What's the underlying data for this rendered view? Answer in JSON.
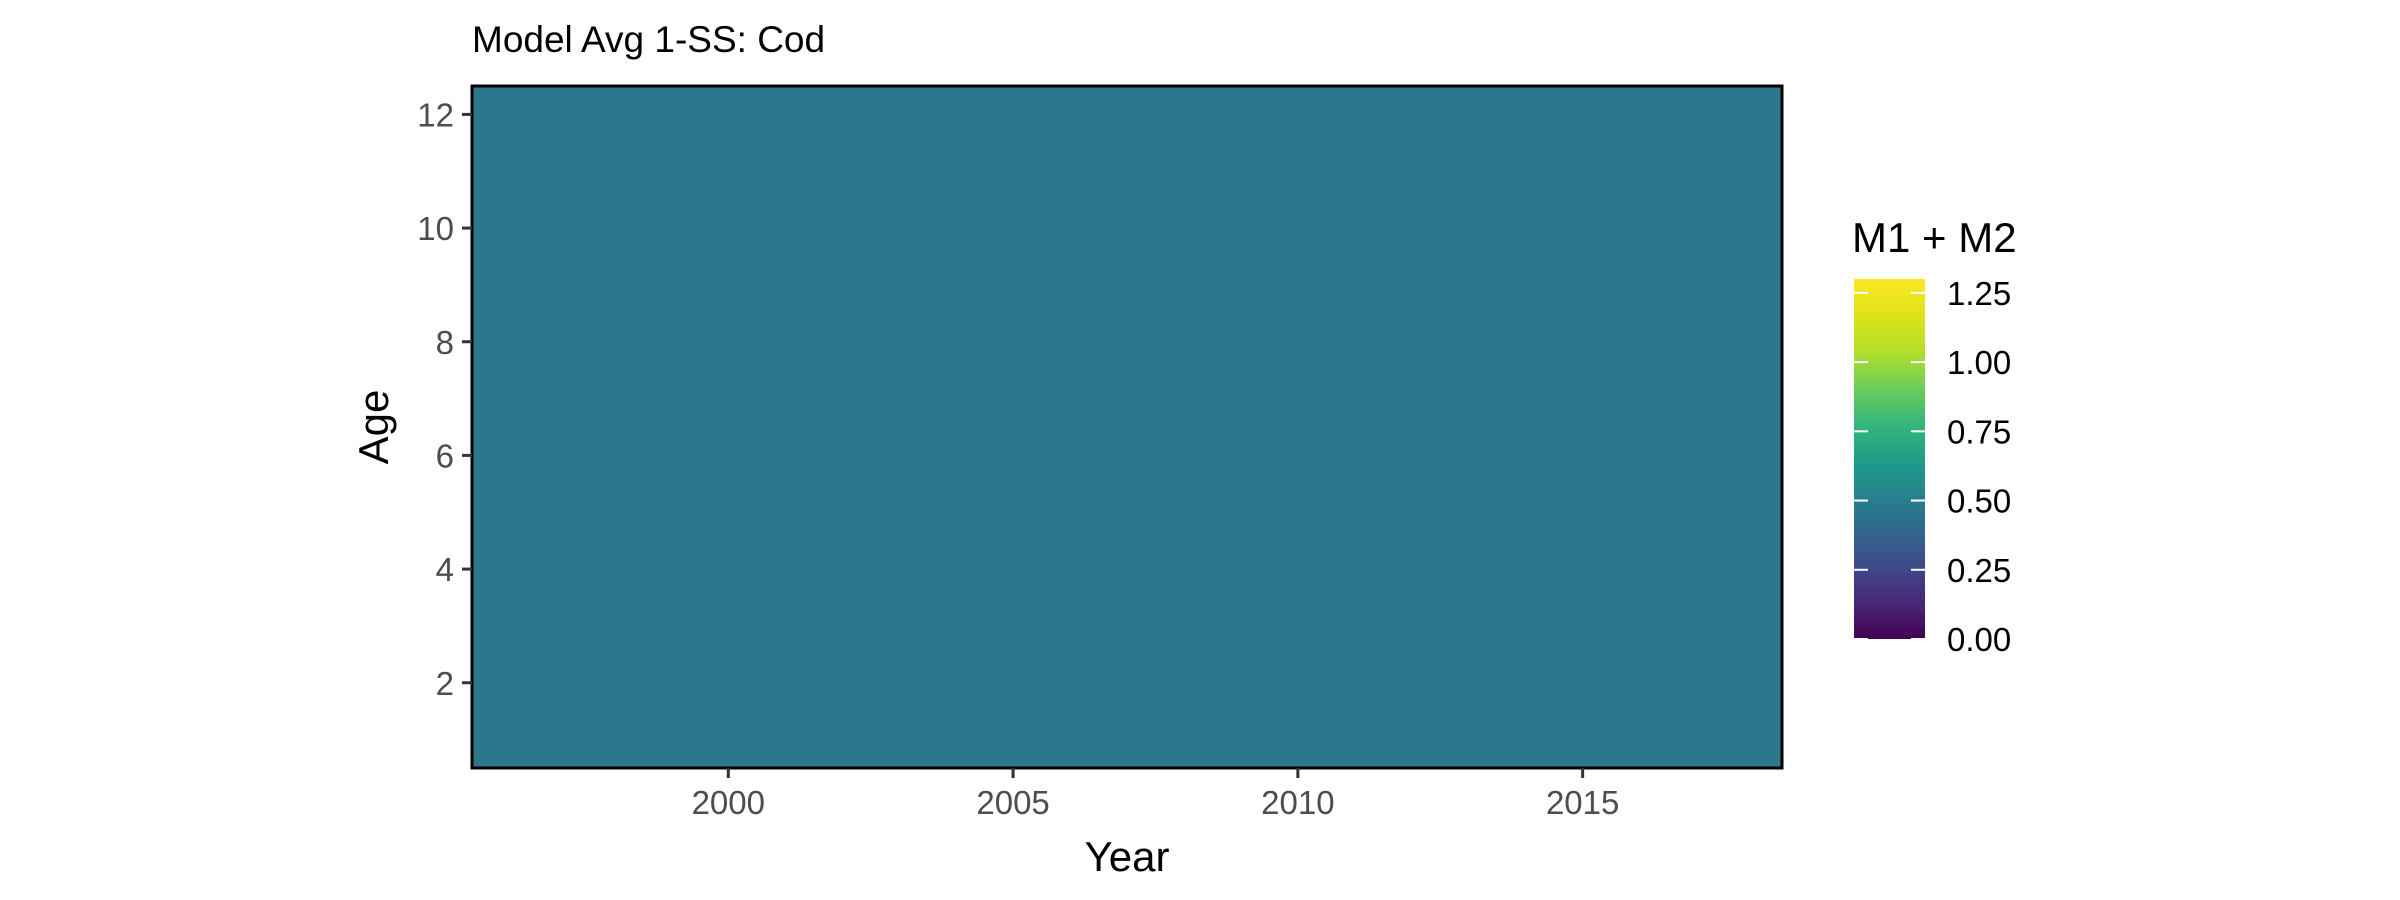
{
  "chart_data": {
    "type": "heatmap",
    "title": "Model Avg 1-SS: Cod",
    "xlabel": "Year",
    "ylabel": "Age",
    "xlim": [
      1995.5,
      2018.5
    ],
    "ylim": [
      0.5,
      12.5
    ],
    "x_ticks": [
      2000,
      2005,
      2010,
      2015
    ],
    "y_ticks": [
      2,
      4,
      6,
      8,
      10,
      12
    ],
    "x": [
      1996,
      1997,
      1998,
      1999,
      2000,
      2001,
      2002,
      2003,
      2004,
      2005,
      2006,
      2007,
      2008,
      2009,
      2010,
      2011,
      2012,
      2013,
      2014,
      2015,
      2016,
      2017,
      2018
    ],
    "y": [
      1,
      2,
      3,
      4,
      5,
      6,
      7,
      8,
      9,
      10,
      11,
      12
    ],
    "fill_value": 0.5,
    "legend": {
      "title": "M1 + M2",
      "position": "right",
      "limits": [
        0,
        1.3
      ],
      "breaks": [
        0.0,
        0.25,
        0.5,
        0.75,
        1.0,
        1.25
      ],
      "labels": [
        "0.00",
        "0.25",
        "0.50",
        "0.75",
        "1.00",
        "1.25"
      ],
      "palette": "viridis"
    },
    "grid": false
  },
  "colors": {
    "fill": "#2c778c",
    "panel_border": "#000000",
    "tick_text": "#4d4d4d"
  }
}
